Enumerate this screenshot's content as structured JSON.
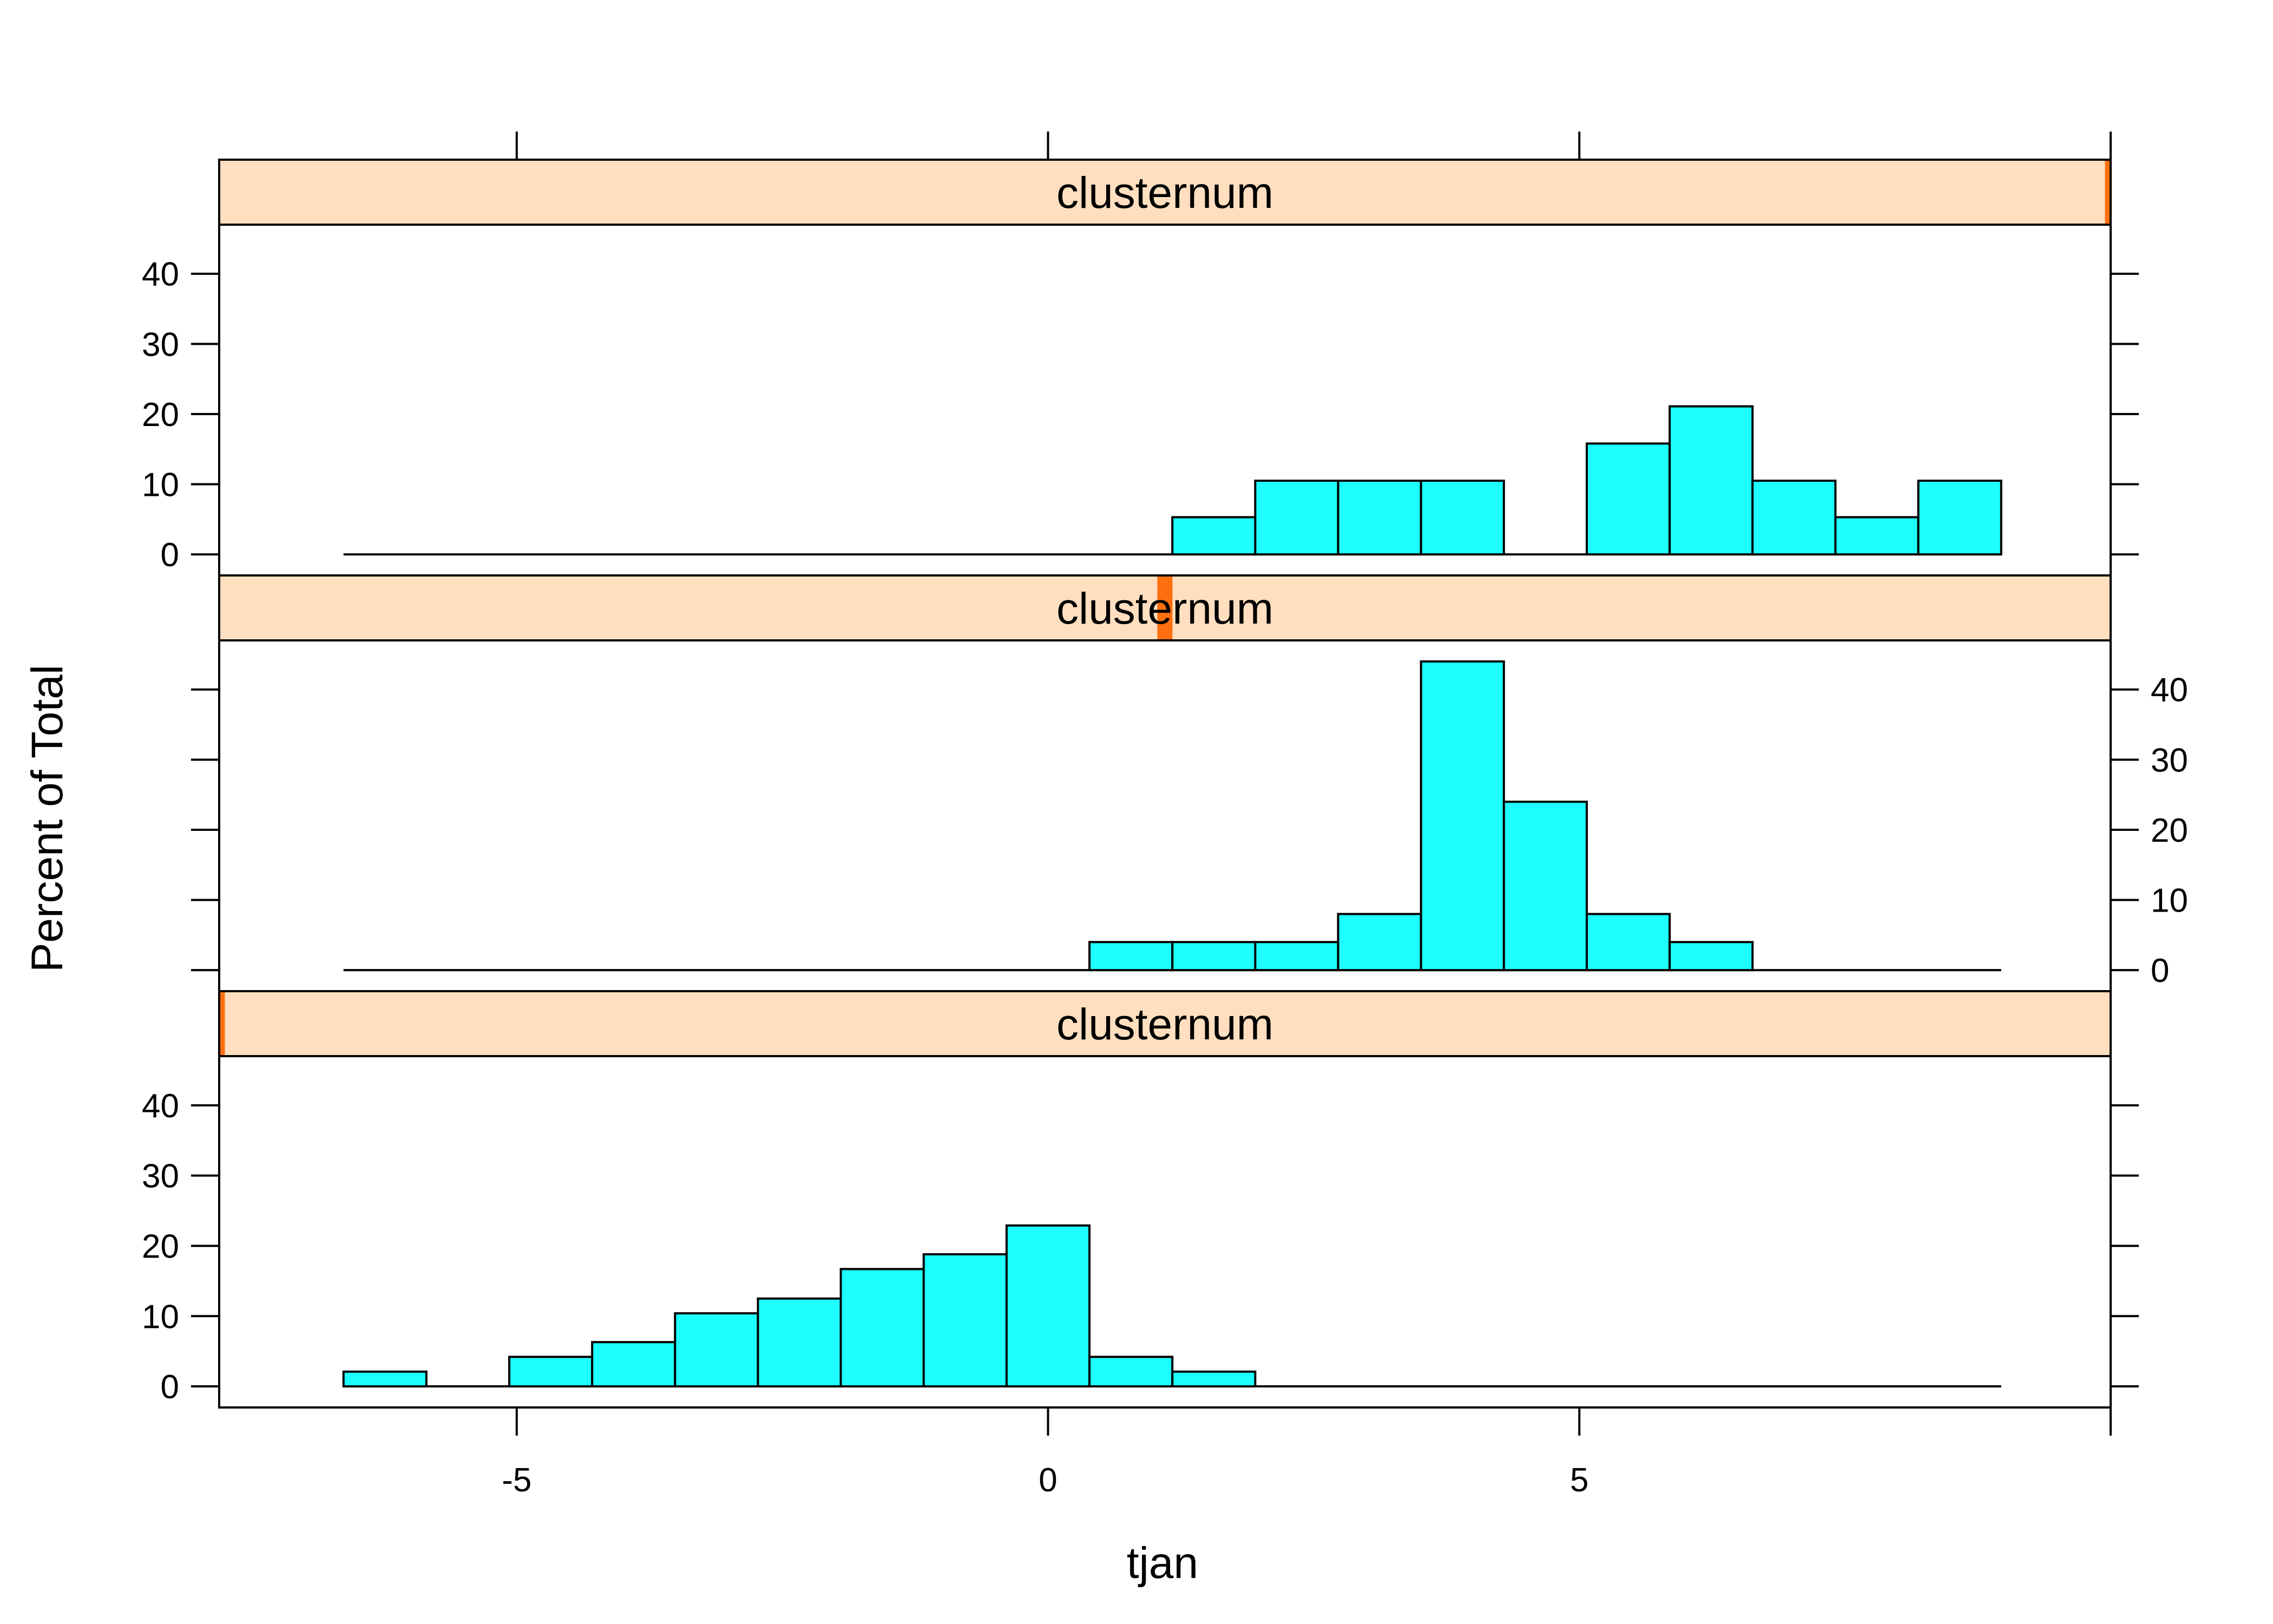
{
  "chart_data": {
    "type": "histogram-lattice",
    "xlabel": "tjan",
    "ylabel": "Percent of Total",
    "xlim": [
      -7.8,
      10
    ],
    "ylim": [
      -3,
      47
    ],
    "x_ticks": [
      -5,
      0,
      5
    ],
    "y_ticks": [
      0,
      10,
      20,
      30,
      40
    ],
    "bin_edges": [
      -6.63,
      -5.85,
      -5.07,
      -4.29,
      -3.51,
      -2.73,
      -1.95,
      -1.17,
      -0.39,
      0.39,
      1.17,
      1.95,
      2.73,
      3.51,
      4.29,
      5.07,
      5.85,
      6.63,
      7.41,
      8.19,
      8.97
    ],
    "fill_color": "#1EFFFF",
    "strip_color": "#FFDFBF",
    "strip_indicator_color": "#FF6F10",
    "panels": [
      {
        "strip_label": "clusternum",
        "level_fraction": [
          0.997,
          1.0
        ],
        "values": [
          0,
          0,
          0,
          0,
          0,
          0,
          0,
          0,
          0,
          0,
          5.3,
          10.5,
          10.5,
          10.5,
          0,
          15.8,
          21.1,
          10.5,
          5.3,
          10.5
        ]
      },
      {
        "strip_label": "clusternum",
        "level_fraction": [
          0.496,
          0.504
        ],
        "values": [
          0,
          0,
          0,
          0,
          0,
          0,
          0,
          0,
          0,
          4.0,
          4.0,
          4.0,
          8.0,
          44.0,
          24.0,
          8.0,
          4.0,
          0,
          0,
          0
        ]
      },
      {
        "strip_label": "clusternum",
        "level_fraction": [
          0.0,
          0.003
        ],
        "values": [
          2.1,
          0,
          4.2,
          6.3,
          10.4,
          12.5,
          16.7,
          18.8,
          22.9,
          4.2,
          2.1,
          0,
          0,
          0,
          0,
          0,
          0,
          0,
          0,
          0
        ]
      }
    ]
  }
}
